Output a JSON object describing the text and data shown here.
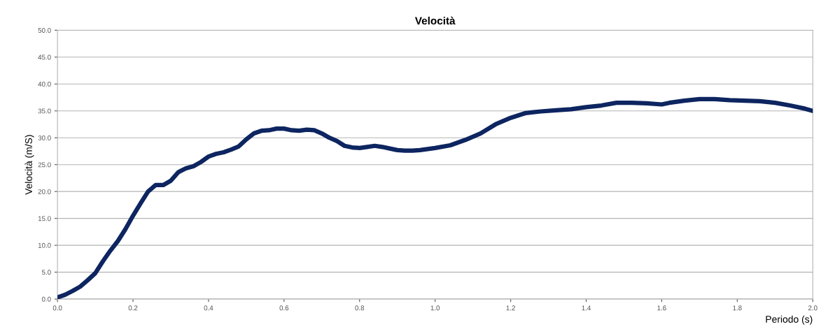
{
  "chart_data": {
    "type": "line",
    "title": "Velocità",
    "xlabel": "Periodo (s)",
    "ylabel": "Velocità (m/S)",
    "xlim": [
      0,
      2
    ],
    "ylim": [
      0,
      50
    ],
    "xticks": [
      {
        "value": 0,
        "label": "0.0"
      },
      {
        "value": 0.2,
        "label": "0.2"
      },
      {
        "value": 0.4,
        "label": "0.4"
      },
      {
        "value": 0.6,
        "label": "0.6"
      },
      {
        "value": 0.8,
        "label": "0.8"
      },
      {
        "value": 1,
        "label": "1.0"
      },
      {
        "value": 1.2,
        "label": "1.2"
      },
      {
        "value": 1.4,
        "label": "1.4"
      },
      {
        "value": 1.6,
        "label": "1.6"
      },
      {
        "value": 1.8,
        "label": "1.8"
      },
      {
        "value": 2,
        "label": "2.0"
      }
    ],
    "yticks": [
      {
        "value": 0,
        "label": "0.0"
      },
      {
        "value": 5,
        "label": "5.0"
      },
      {
        "value": 10,
        "label": "10.0"
      },
      {
        "value": 15,
        "label": "15.0"
      },
      {
        "value": 20,
        "label": "20.0"
      },
      {
        "value": 25,
        "label": "25.0"
      },
      {
        "value": 30,
        "label": "30.0"
      },
      {
        "value": 35,
        "label": "35.0"
      },
      {
        "value": 40,
        "label": "40.0"
      },
      {
        "value": 45,
        "label": "45.0"
      },
      {
        "value": 50,
        "label": "50.0"
      }
    ],
    "grid": "y",
    "marker": "none",
    "line_style": "solid",
    "x": [
      0,
      0.02,
      0.04,
      0.06,
      0.08,
      0.1,
      0.12,
      0.14,
      0.16,
      0.18,
      0.2,
      0.22,
      0.24,
      0.26,
      0.28,
      0.3,
      0.32,
      0.34,
      0.36,
      0.38,
      0.4,
      0.42,
      0.44,
      0.46,
      0.48,
      0.5,
      0.52,
      0.54,
      0.56,
      0.58,
      0.6,
      0.62,
      0.64,
      0.66,
      0.68,
      0.7,
      0.72,
      0.74,
      0.76,
      0.78,
      0.8,
      0.82,
      0.84,
      0.86,
      0.88,
      0.9,
      0.92,
      0.94,
      0.96,
      0.98,
      1.0,
      1.04,
      1.08,
      1.12,
      1.16,
      1.2,
      1.24,
      1.28,
      1.32,
      1.36,
      1.4,
      1.44,
      1.48,
      1.52,
      1.56,
      1.6,
      1.62,
      1.66,
      1.7,
      1.74,
      1.78,
      1.82,
      1.86,
      1.9,
      1.94,
      1.98,
      2.0
    ],
    "series": [
      {
        "color": "#0d2560",
        "values": [
          0.3,
          0.8,
          1.5,
          2.3,
          3.5,
          4.8,
          7.0,
          9.0,
          10.8,
          13.0,
          15.5,
          17.8,
          20.0,
          21.2,
          21.2,
          22.0,
          23.6,
          24.3,
          24.7,
          25.5,
          26.5,
          27.0,
          27.3,
          27.8,
          28.4,
          29.7,
          30.8,
          31.3,
          31.4,
          31.7,
          31.7,
          31.4,
          31.3,
          31.5,
          31.4,
          30.8,
          30.0,
          29.4,
          28.5,
          28.2,
          28.1,
          28.3,
          28.5,
          28.3,
          28.0,
          27.7,
          27.6,
          27.6,
          27.7,
          27.9,
          28.1,
          28.6,
          29.6,
          30.8,
          32.5,
          33.7,
          34.6,
          34.9,
          35.1,
          35.3,
          35.7,
          36.0,
          36.5,
          36.5,
          36.4,
          36.2,
          36.5,
          36.9,
          37.2,
          37.2,
          37.0,
          36.9,
          36.8,
          36.5,
          36.0,
          35.4,
          35.0
        ]
      }
    ]
  }
}
